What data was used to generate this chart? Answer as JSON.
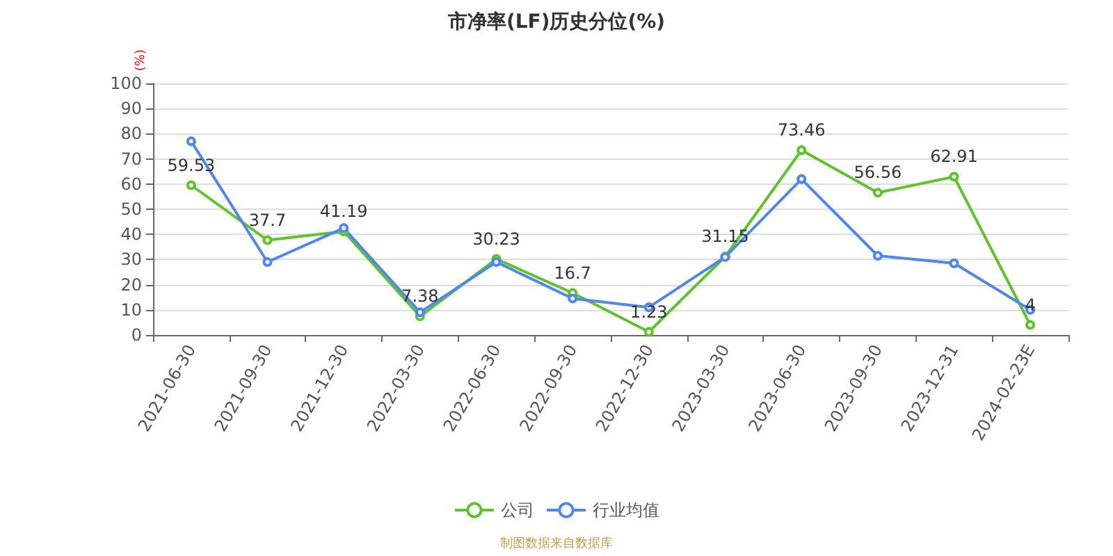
{
  "chart_data": {
    "type": "line",
    "title": "市净率(LF)历史分位(%)",
    "ylabel": "(%)",
    "categories": [
      "2021-06-30",
      "2021-09-30",
      "2021-12-30",
      "2022-03-30",
      "2022-06-30",
      "2022-09-30",
      "2022-12-30",
      "2023-03-30",
      "2023-06-30",
      "2023-09-30",
      "2023-12-31",
      "2024-02-23E"
    ],
    "series": [
      {
        "name": "公司",
        "color": "#5ec42b",
        "values": [
          59.53,
          37.7,
          41.19,
          7.38,
          30.23,
          16.7,
          1.23,
          31.15,
          73.46,
          56.56,
          62.91,
          4
        ],
        "data_labels": true
      },
      {
        "name": "行业均值",
        "color": "#5087ec",
        "values": [
          77,
          29,
          42.5,
          9,
          29,
          14.5,
          11,
          31,
          62,
          31.5,
          28.5,
          10
        ]
      }
    ],
    "ylim": [
      0,
      100
    ],
    "yticks": [
      0,
      10,
      20,
      30,
      40,
      50,
      60,
      70,
      80,
      90,
      100
    ],
    "grid": "y",
    "legend": "bottom",
    "marker": "circle",
    "line_style": "solid",
    "annotations": [
      "制图数据来自数据库"
    ]
  }
}
